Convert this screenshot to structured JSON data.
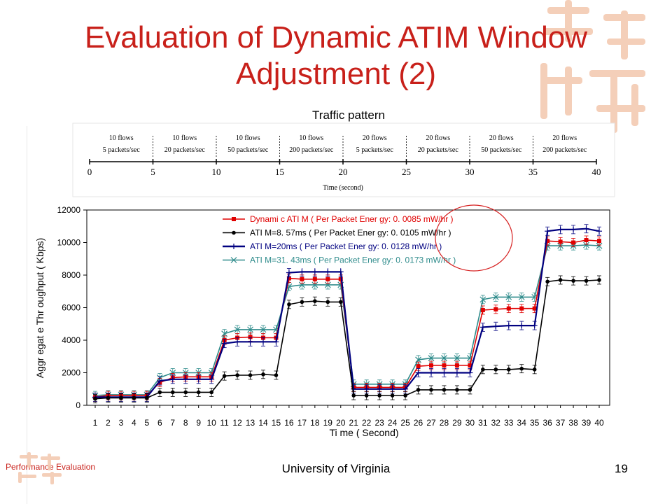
{
  "slide": {
    "title_line1": "Evaluation of Dynamic ATIM Window",
    "title_line2": "Adjustment (2)",
    "subtitle": "Traffic pattern",
    "footer_left": "Performance Evaluation",
    "footer_center": "University of Virginia",
    "slide_number": "19",
    "accent_color": "#c8201a"
  },
  "timeline": {
    "ticks": [
      "0",
      "5",
      "10",
      "15",
      "20",
      "25",
      "30",
      "35",
      "40"
    ],
    "segments": [
      {
        "flows": "10 flows",
        "rate": "5 packets/sec"
      },
      {
        "flows": "10 flows",
        "rate": "20 packets/sec"
      },
      {
        "flows": "10 flows",
        "rate": "50 packets/sec"
      },
      {
        "flows": "10 flows",
        "rate": "200 packets/sec"
      },
      {
        "flows": "20 flows",
        "rate": "5 packets/sec"
      },
      {
        "flows": "20 flows",
        "rate": "20 packets/sec"
      },
      {
        "flows": "20 flows",
        "rate": "50 packets/sec"
      },
      {
        "flows": "20 flows",
        "rate": "200 packets/sec"
      }
    ],
    "axis_label": "Time (second)"
  },
  "chart_data": {
    "type": "line",
    "xlabel": "Ti me ( Second)",
    "ylabel": "Aggr egat e Thr oughput ( Kbps)",
    "ylim": [
      0,
      12000
    ],
    "yticks": [
      0,
      2000,
      4000,
      6000,
      8000,
      10000,
      12000
    ],
    "x": [
      1,
      2,
      3,
      4,
      5,
      6,
      7,
      8,
      9,
      10,
      11,
      12,
      13,
      14,
      15,
      16,
      17,
      18,
      19,
      20,
      21,
      22,
      23,
      24,
      25,
      26,
      27,
      28,
      29,
      30,
      31,
      32,
      33,
      34,
      35,
      36,
      37,
      38,
      39,
      40
    ],
    "series": [
      {
        "name": "Dynami c ATI M ( Per  Packet  Ener gy:  0. 0085 mW/hr )",
        "color": "#e00000",
        "marker": "square",
        "values": [
          500,
          600,
          600,
          600,
          600,
          1400,
          1700,
          1750,
          1750,
          1750,
          4000,
          4150,
          4200,
          4150,
          4150,
          7800,
          7750,
          7750,
          7750,
          7750,
          1100,
          1100,
          1100,
          1100,
          1100,
          2400,
          2450,
          2450,
          2450,
          2450,
          5850,
          5900,
          5950,
          5950,
          5950,
          10100,
          10050,
          10000,
          10150,
          10100
        ]
      },
      {
        "name": "ATI M=8. 57ms    ( Per  Packet  Ener gy:  0. 0105 mW/hr )",
        "color": "#000000",
        "marker": "circle",
        "values": [
          400,
          450,
          450,
          450,
          450,
          800,
          800,
          800,
          800,
          800,
          1800,
          1850,
          1850,
          1900,
          1850,
          6200,
          6350,
          6400,
          6350,
          6350,
          600,
          600,
          600,
          600,
          600,
          950,
          950,
          950,
          950,
          950,
          2200,
          2200,
          2200,
          2250,
          2200,
          7600,
          7700,
          7650,
          7650,
          7700
        ]
      },
      {
        "name": "ATI M=20ms      ( Per  Packet  Ener gy:  0. 0128 mW/hr )",
        "color": "#000080",
        "marker": "plus",
        "values": [
          500,
          500,
          500,
          500,
          500,
          1500,
          1600,
          1600,
          1600,
          1600,
          3800,
          3900,
          3900,
          3900,
          3900,
          8150,
          8200,
          8200,
          8200,
          8200,
          1000,
          1000,
          1000,
          1000,
          1000,
          2000,
          2000,
          2000,
          2000,
          2000,
          4800,
          4850,
          4900,
          4900,
          4900,
          10700,
          10800,
          10800,
          10850,
          10700
        ]
      },
      {
        "name": "ATI M=31. 43ms  ( Per  Packet  Ener gy:  0. 0173 mW/hr )",
        "color": "#2e8b8b",
        "marker": "x",
        "values": [
          600,
          650,
          650,
          650,
          650,
          1700,
          2000,
          2000,
          2000,
          2000,
          4400,
          4650,
          4650,
          4650,
          4650,
          7300,
          7400,
          7400,
          7400,
          7400,
          1300,
          1300,
          1300,
          1300,
          1300,
          2800,
          2900,
          2900,
          2900,
          2900,
          6500,
          6650,
          6650,
          6650,
          6650,
          9800,
          9800,
          9800,
          9850,
          9800
        ]
      }
    ],
    "legend_position": "top-right",
    "highlight": "circle around Per Packet Energy values"
  }
}
